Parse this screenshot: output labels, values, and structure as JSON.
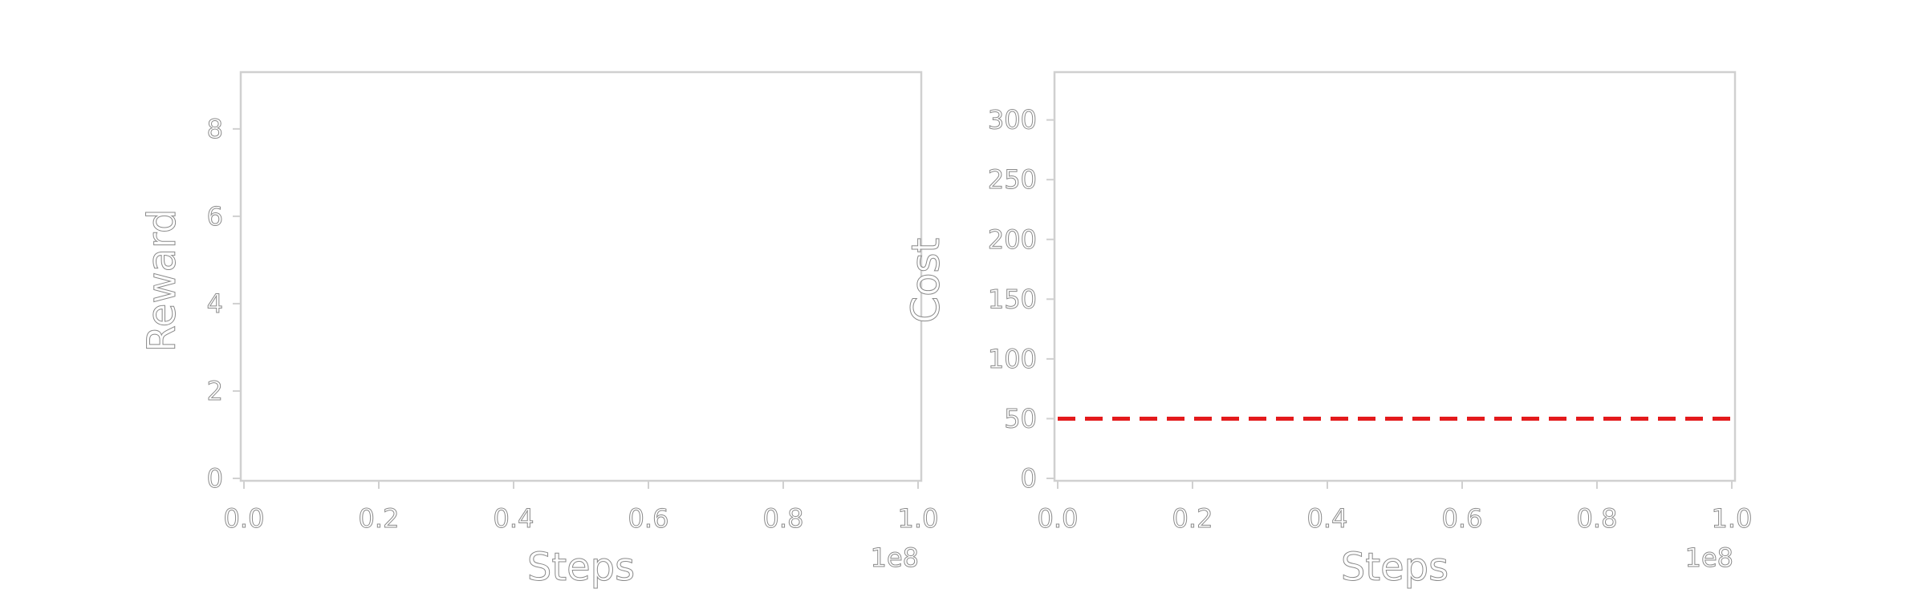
{
  "chart_data": [
    {
      "type": "line",
      "xlabel": "Steps",
      "ylabel": "Reward",
      "x_offset_label": "1e8",
      "xlim": [
        0.0,
        1.0
      ],
      "ylim": [
        0,
        9.3
      ],
      "xticks": [
        "0.0",
        "0.2",
        "0.4",
        "0.6",
        "0.8",
        "1.0"
      ],
      "yticks": [
        "0",
        "2",
        "4",
        "6",
        "8"
      ],
      "series": [],
      "grid": false
    },
    {
      "type": "line",
      "xlabel": "Steps",
      "ylabel": "Cost",
      "x_offset_label": "1e8",
      "xlim": [
        0.0,
        1.0
      ],
      "ylim": [
        0,
        340
      ],
      "xticks": [
        "0.0",
        "0.2",
        "0.4",
        "0.6",
        "0.8",
        "1.0"
      ],
      "yticks": [
        "0",
        "50",
        "100",
        "150",
        "200",
        "250",
        "300"
      ],
      "series": [],
      "threshold": {
        "y": 50,
        "color": "#e31a1c",
        "style": "dashed"
      },
      "grid": false
    }
  ]
}
